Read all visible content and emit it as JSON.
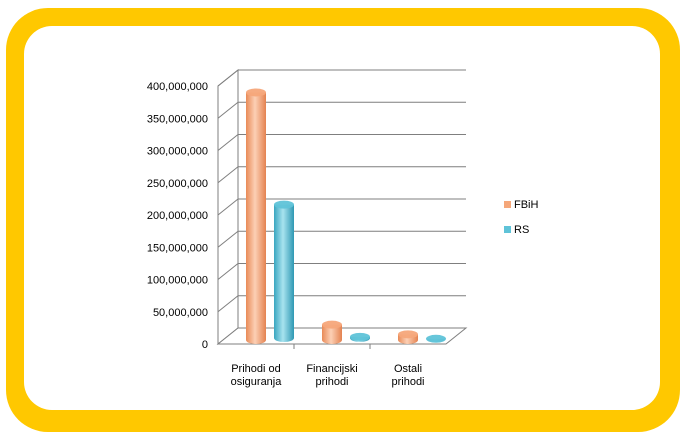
{
  "chart_data": {
    "type": "bar",
    "title": "",
    "xlabel": "",
    "ylabel": "",
    "ylim": [
      0,
      400000000
    ],
    "yticks": [
      "0",
      "50,000,000",
      "100,000,000",
      "150,000,000",
      "200,000,000",
      "250,000,000",
      "300,000,000",
      "350,000,000",
      "400,000,000"
    ],
    "categories": [
      [
        "Prihodi od",
        "osiguranja"
      ],
      [
        "Financijski",
        "prihodi"
      ],
      [
        "Ostali",
        "prihodi"
      ]
    ],
    "series": [
      {
        "name": "FBiH",
        "values": [
          390000000,
          30000000,
          15000000
        ],
        "color": "#f5a77a"
      },
      {
        "name": "RS",
        "values": [
          213000000,
          8000000,
          5000000
        ],
        "color": "#5fc3d8"
      }
    ],
    "grid": true,
    "legend_position": "right",
    "style": "3d-cylinder"
  }
}
